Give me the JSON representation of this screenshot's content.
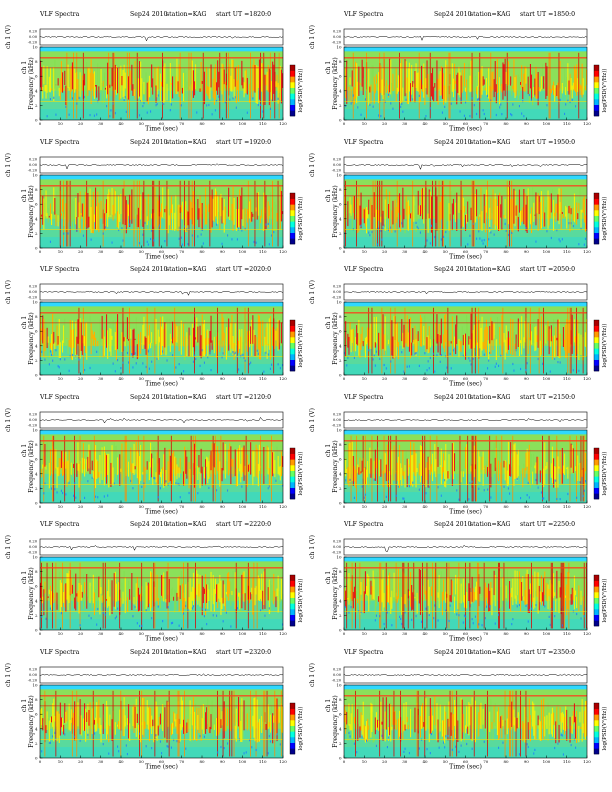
{
  "page": {
    "columns": 2,
    "rows": 6
  },
  "panel_common": {
    "title_left": "VLF Spectra",
    "date": "Sep24 2010",
    "station": "station=KAG",
    "trace_ylabel": "ch 1 (V)",
    "trace_ticks": [
      "0.20",
      "0.00",
      "-0.20"
    ],
    "spec_ylabel_top": "ch 1",
    "spec_ylabel": "Frequency (kHz)",
    "spec_yticks": [
      "0",
      "2",
      "4",
      "6",
      "8",
      "10"
    ],
    "xticks": [
      "0",
      "10",
      "20",
      "30",
      "40",
      "50",
      "60",
      "70",
      "80",
      "90",
      "100",
      "110",
      "120"
    ],
    "xlabel": "Time (sec)",
    "colorbar_label": "log(PSD(V²/Hz))",
    "colorbar_colors": [
      "#00008c",
      "#0000ff",
      "#00b4ff",
      "#00ffe0",
      "#64ff64",
      "#ffff00",
      "#ff9900",
      "#ff0000",
      "#aa0000"
    ]
  },
  "chart_data": [
    {
      "type": "heatmap",
      "title": "VLF Spectra   Sep24 2010   station=KAG   start UT =1820:0",
      "start_ut": "start UT =1820:0",
      "xlabel": "Time (sec)",
      "ylabel": "Frequency (kHz)",
      "xlim": [
        0,
        120
      ],
      "ylim": [
        0,
        10
      ]
    },
    {
      "type": "heatmap",
      "title": "VLF Spectra   Sep24 2010   station=KAG   start UT =1850:0",
      "start_ut": "start UT =1850:0",
      "xlabel": "Time (sec)",
      "ylabel": "Frequency (kHz)",
      "xlim": [
        0,
        120
      ],
      "ylim": [
        0,
        10
      ]
    },
    {
      "type": "heatmap",
      "title": "VLF Spectra   Sep24 2010   station=KAG   start UT =1920:0",
      "start_ut": "start UT =1920:0",
      "xlabel": "Time (sec)",
      "ylabel": "Frequency (kHz)",
      "xlim": [
        0,
        120
      ],
      "ylim": [
        0,
        10
      ]
    },
    {
      "type": "heatmap",
      "title": "VLF Spectra   Sep24 2010   station=KAG   start UT =1950:0",
      "start_ut": "start UT =1950:0",
      "xlabel": "Time (sec)",
      "ylabel": "Frequency (kHz)",
      "xlim": [
        0,
        120
      ],
      "ylim": [
        0,
        10
      ]
    },
    {
      "type": "heatmap",
      "title": "VLF Spectra   Sep24 2010   station=KAG   start UT =2020:0",
      "start_ut": "start UT =2020:0",
      "xlabel": "Time (sec)",
      "ylabel": "Frequency (kHz)",
      "xlim": [
        0,
        120
      ],
      "ylim": [
        0,
        10
      ]
    },
    {
      "type": "heatmap",
      "title": "VLF Spectra   Sep24 2010   station=KAG   start UT =2050:0",
      "start_ut": "start UT =2050:0",
      "xlabel": "Time (sec)",
      "ylabel": "Frequency (kHz)",
      "xlim": [
        0,
        120
      ],
      "ylim": [
        0,
        10
      ]
    },
    {
      "type": "heatmap",
      "title": "VLF Spectra   Sep24 2010   station=KAG   start UT =2120:0",
      "start_ut": "start UT =2120:0",
      "xlabel": "Time (sec)",
      "ylabel": "Frequency (kHz)",
      "xlim": [
        0,
        120
      ],
      "ylim": [
        0,
        10
      ]
    },
    {
      "type": "heatmap",
      "title": "VLF Spectra   Sep24 2010   station=KAG   start UT =2150:0",
      "start_ut": "start UT =2150:0",
      "xlabel": "Time (sec)",
      "ylabel": "Frequency (kHz)",
      "xlim": [
        0,
        120
      ],
      "ylim": [
        0,
        10
      ]
    },
    {
      "type": "heatmap",
      "title": "VLF Spectra   Sep24 2010   station=KAG   start UT =2220:0",
      "start_ut": "start UT =2220:0",
      "xlabel": "Time (sec)",
      "ylabel": "Frequency (kHz)",
      "xlim": [
        0,
        120
      ],
      "ylim": [
        0,
        10
      ]
    },
    {
      "type": "heatmap",
      "title": "VLF Spectra   Sep24 2010   station=KAG   start UT =2250:0",
      "start_ut": "start UT =2250:0",
      "xlabel": "Time (sec)",
      "ylabel": "Frequency (kHz)",
      "xlim": [
        0,
        120
      ],
      "ylim": [
        0,
        10
      ]
    },
    {
      "type": "heatmap",
      "title": "VLF Spectra   Sep24 2010   station=KAG   start UT =2320:0",
      "start_ut": "start UT =2320:0",
      "xlabel": "Time (sec)",
      "ylabel": "Frequency (kHz)",
      "xlim": [
        0,
        120
      ],
      "ylim": [
        0,
        10
      ]
    },
    {
      "type": "heatmap",
      "title": "VLF Spectra   Sep24 2010   station=KAG   start UT =2350:0",
      "start_ut": "start UT =2350:0",
      "xlabel": "Time (sec)",
      "ylabel": "Frequency (kHz)",
      "xlim": [
        0,
        120
      ],
      "ylim": [
        0,
        10
      ]
    }
  ]
}
